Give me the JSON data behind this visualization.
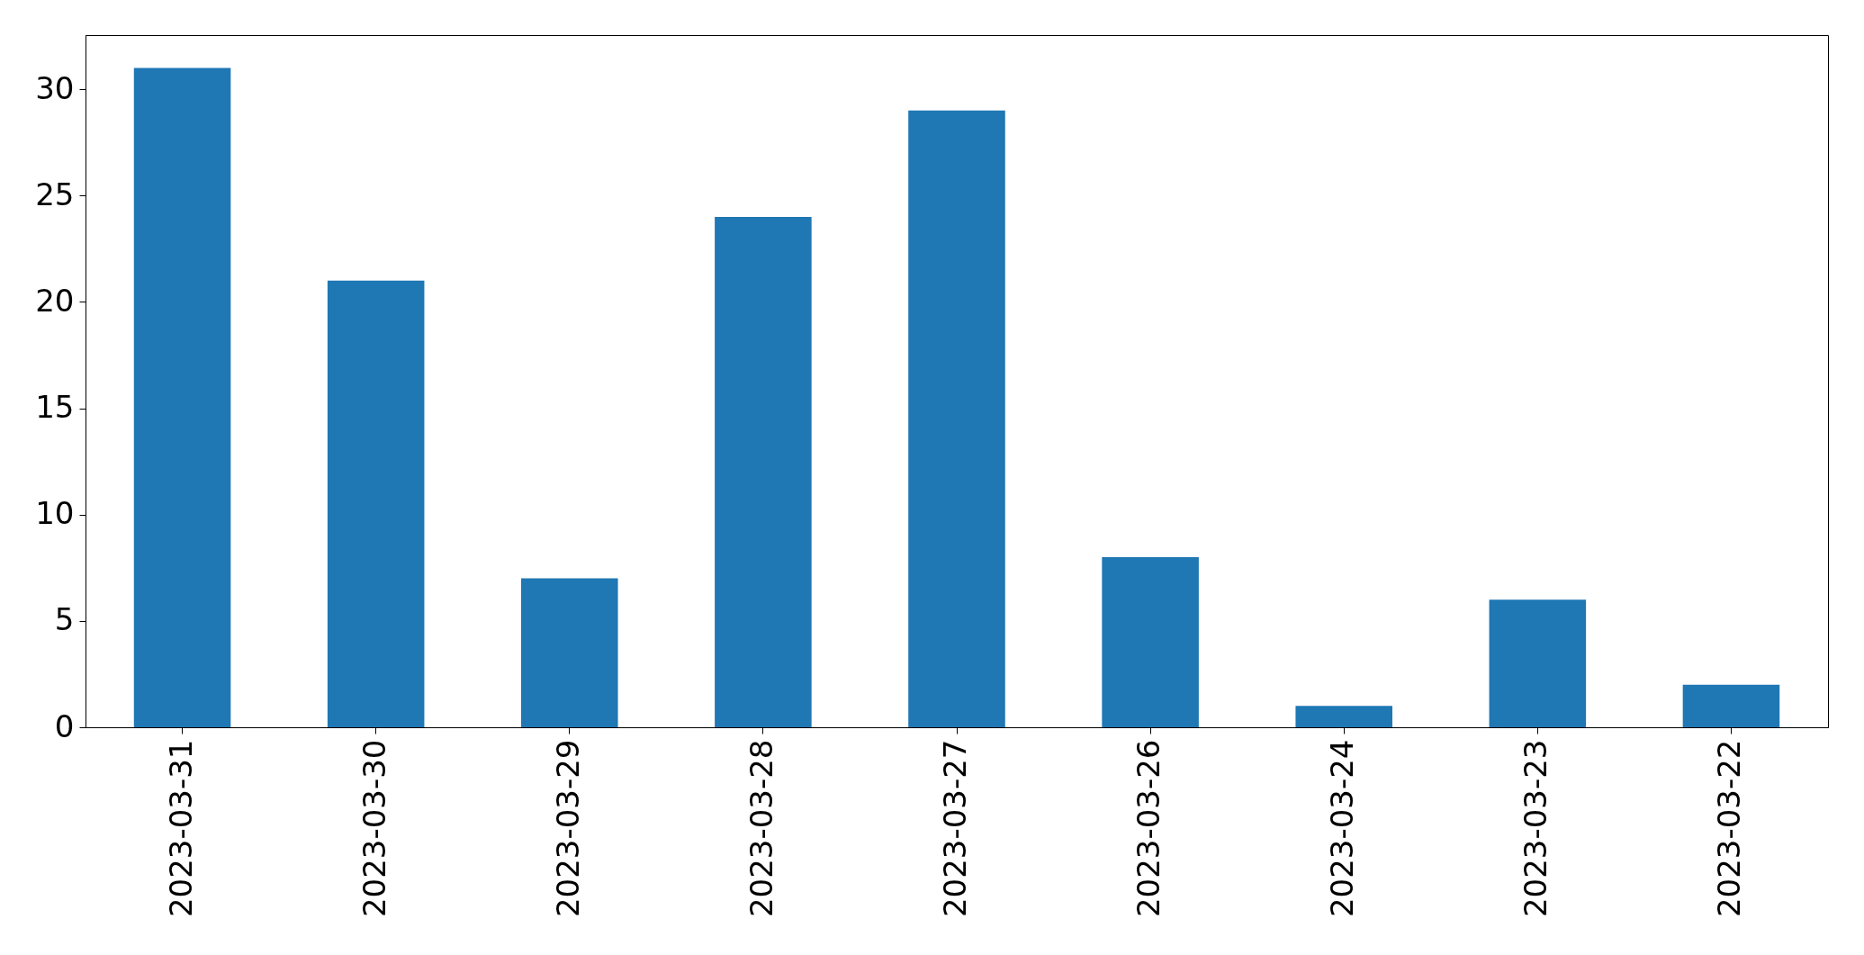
{
  "chart_data": {
    "type": "bar",
    "categories": [
      "2023-03-31",
      "2023-03-30",
      "2023-03-29",
      "2023-03-28",
      "2023-03-27",
      "2023-03-26",
      "2023-03-24",
      "2023-03-23",
      "2023-03-22"
    ],
    "values": [
      31,
      21,
      7,
      24,
      29,
      8,
      1,
      6,
      2
    ],
    "color": "#1f77b4",
    "ylim": [
      0,
      32.55
    ],
    "yticks": [
      0,
      5,
      10,
      15,
      20,
      25,
      30
    ]
  }
}
